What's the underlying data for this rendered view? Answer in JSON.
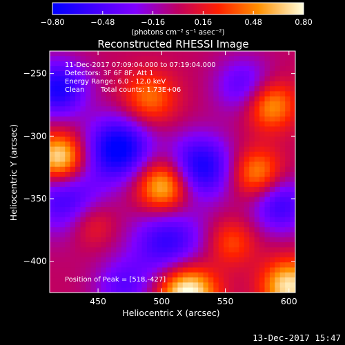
{
  "chart_data": {
    "type": "heatmap",
    "title": "Reconstructed RHESSI Image",
    "xlabel": "Heliocentric X (arcsec)",
    "ylabel": "Heliocentric Y (arcsec)",
    "xlim": [
      412,
      605
    ],
    "ylim": [
      -425,
      -232
    ],
    "x_ticks": [
      450,
      500,
      550,
      600
    ],
    "x_tick_labels": [
      "450",
      "500",
      "550",
      "600"
    ],
    "y_ticks": [
      -250,
      -300,
      -350,
      -400
    ],
    "y_tick_labels": [
      "−250",
      "−300",
      "−350",
      "−400"
    ],
    "colorbar": {
      "min": -0.8,
      "max": 0.8,
      "ticks": [
        -0.8,
        -0.48,
        -0.16,
        0.16,
        0.48,
        0.8
      ],
      "tick_labels": [
        "−0.80",
        "−0.48",
        "−0.16",
        "0.16",
        "0.48",
        "0.80"
      ],
      "unit_label": "(photons cm⁻² s⁻¹ asec⁻²)"
    },
    "blobs": [
      {
        "x": 466,
        "y": -310,
        "amp": -0.85,
        "r": 18
      },
      {
        "x": 418,
        "y": -262,
        "amp": -0.7,
        "r": 16
      },
      {
        "x": 530,
        "y": -325,
        "amp": -0.75,
        "r": 18
      },
      {
        "x": 505,
        "y": -385,
        "amp": -0.6,
        "r": 20
      },
      {
        "x": 425,
        "y": -350,
        "amp": -0.55,
        "r": 20
      },
      {
        "x": 565,
        "y": -260,
        "amp": -0.45,
        "r": 16
      },
      {
        "x": 593,
        "y": -355,
        "amp": -0.55,
        "r": 16
      },
      {
        "x": 470,
        "y": -420,
        "amp": -0.4,
        "r": 16
      },
      {
        "x": 420,
        "y": -318,
        "amp": 0.85,
        "r": 14
      },
      {
        "x": 502,
        "y": -340,
        "amp": 0.78,
        "r": 15
      },
      {
        "x": 520,
        "y": -425,
        "amp": 0.9,
        "r": 16
      },
      {
        "x": 585,
        "y": -275,
        "amp": 0.6,
        "r": 14
      },
      {
        "x": 575,
        "y": -330,
        "amp": 0.55,
        "r": 14
      },
      {
        "x": 600,
        "y": -420,
        "amp": 0.75,
        "r": 15
      },
      {
        "x": 490,
        "y": -270,
        "amp": 0.45,
        "r": 15
      },
      {
        "x": 555,
        "y": -385,
        "amp": 0.35,
        "r": 13
      },
      {
        "x": 445,
        "y": -370,
        "amp": 0.3,
        "r": 13
      }
    ],
    "annotations": [
      "11-Dec-2017 07:09:04.000 to 07:19:04.000",
      "Detectors: 3F 6F 8F, Att 1",
      "Energy Range: 6.0 - 12.0 keV",
      "Clean",
      "Total counts: 1.73E+06",
      "Position of Peak = [518,-427]"
    ],
    "timestamp": "13-Dec-2017 15:47"
  }
}
